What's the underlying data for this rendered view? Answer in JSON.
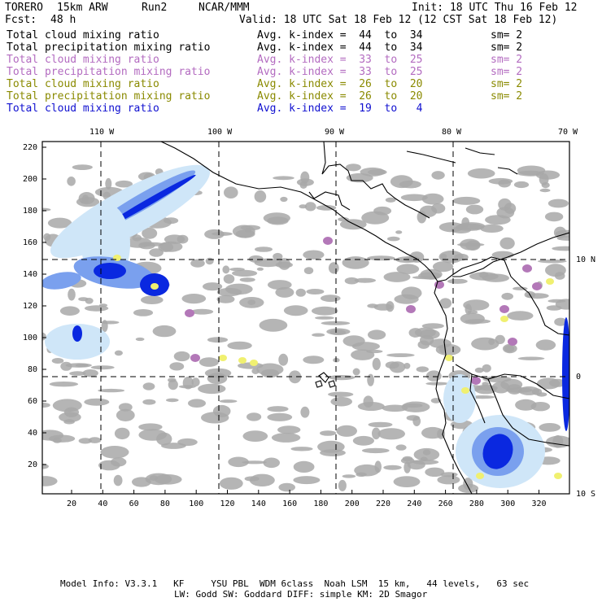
{
  "header": {
    "model": "TORERO",
    "resolution": "15km ARW",
    "run": "Run2",
    "org": "NCAR/MMM",
    "init": "Init: 18 UTC Thu 16 Feb 12",
    "fcst_label": "Fcst:",
    "fcst_value": "48 h",
    "valid": "Valid: 18 UTC Sat 18 Feb 12 (12 CST Sat 18 Feb 12)"
  },
  "legend": [
    {
      "field": "Total cloud mixing ratio",
      "avg": "Avg. k-index =  44  to  34",
      "sm": "sm= 2",
      "color": "#000000"
    },
    {
      "field": "Total precipitation mixing ratio",
      "avg": "Avg. k-index =  44  to  34",
      "sm": "sm= 2",
      "color": "#000000"
    },
    {
      "field": "Total cloud mixing ratio",
      "avg": "Avg. k-index =  33  to  25",
      "sm": "sm= 2",
      "color": "#b36bc0"
    },
    {
      "field": "Total precipitation mixing ratio",
      "avg": "Avg. k-index =  33  to  25",
      "sm": "sm= 2",
      "color": "#b36bc0"
    },
    {
      "field": "Total cloud mixing ratio",
      "avg": "Avg. k-index =  26  to  20",
      "sm": "sm= 2",
      "color": "#8a8a00"
    },
    {
      "field": "Total precipitation mixing ratio",
      "avg": "Avg. k-index =  26  to  20",
      "sm": "sm= 2",
      "color": "#8a8a00"
    },
    {
      "field": "Total cloud mixing ratio",
      "avg": "Avg. k-index =  19  to   4",
      "sm": "",
      "color": "#1010d0"
    }
  ],
  "map": {
    "lon_labels": [
      "110 W",
      "100 W",
      "90 W",
      "80 W",
      "70 W"
    ],
    "lat_labels": [
      "10 N",
      "0",
      "10 S"
    ],
    "x_ticks": [
      "20",
      "40",
      "60",
      "80",
      "100",
      "120",
      "140",
      "160",
      "180",
      "200",
      "220",
      "240",
      "260",
      "280",
      "300",
      "320"
    ],
    "y_ticks": [
      "220",
      "200",
      "180",
      "160",
      "140",
      "120",
      "100",
      "80",
      "60",
      "40",
      "20"
    ],
    "colors": {
      "gray_cloud": "#a8a8a8",
      "purple": "#b378b8",
      "yellow": "#f0f070",
      "light_blue": "#cfe6f8",
      "mid_blue": "#7aa0ee",
      "dark_blue": "#0a28e0"
    }
  },
  "footer": {
    "line1": "Model Info: V3.3.1   KF     YSU PBL  WDM 6class  Noah LSM  15 km,   44 levels,   63 sec",
    "line2": "LW: Godd SW: Goddard DIFF: simple KM: 2D Smagor"
  }
}
